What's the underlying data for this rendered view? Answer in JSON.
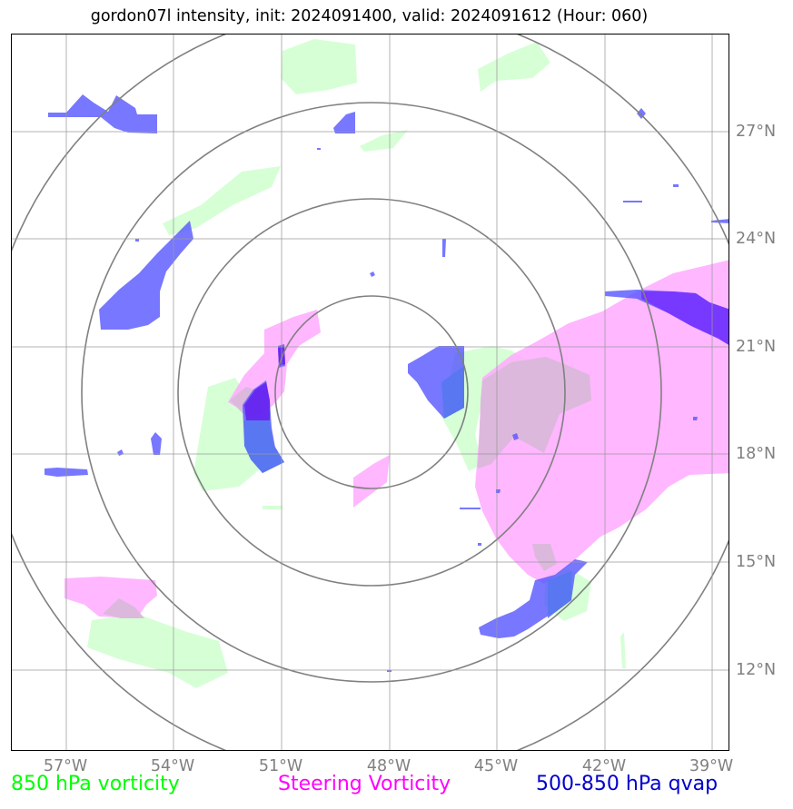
{
  "title": "gordon07l intensity, init: 2024091400, valid: 2024091612 (Hour: 060)",
  "legend": {
    "green": "850 hPa vorticity",
    "magenta": "Steering Vorticity",
    "blue": "500-850 hPa qvap"
  },
  "axes": {
    "lon_labels": [
      "57°W",
      "54°W",
      "51°W",
      "48°W",
      "45°W",
      "42°W",
      "39°W"
    ],
    "lat_labels": [
      "27°N",
      "24°N",
      "21°N",
      "18°N",
      "15°N",
      "12°N"
    ]
  },
  "colors": {
    "vorticity_850": "#ccffcc",
    "steering_vorticity": "#ffaaff",
    "qvap": "#5555ff",
    "grid": "#808080"
  }
}
